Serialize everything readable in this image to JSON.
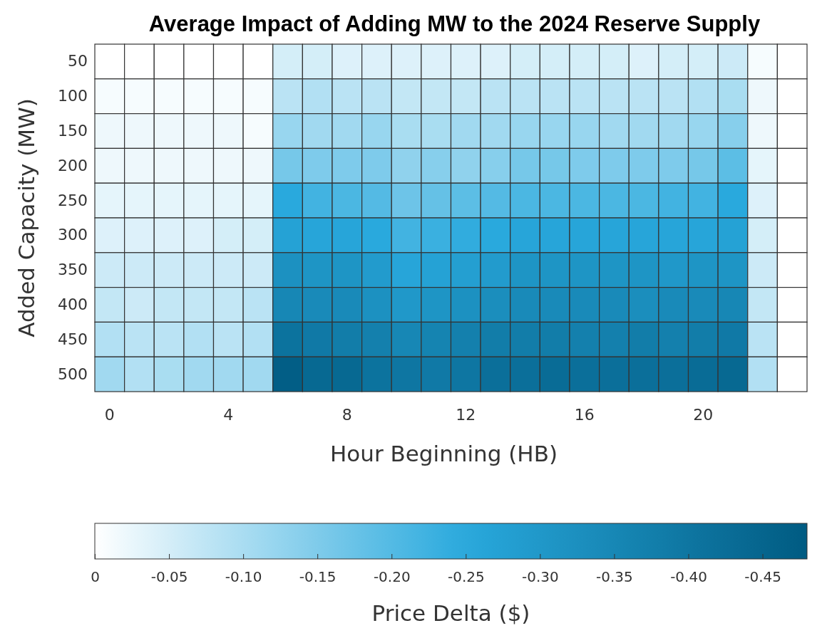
{
  "chart_data": {
    "type": "heatmap",
    "title": "Average Impact of Adding MW to the 2024 Reserve Supply",
    "xlabel": "Hour Beginning (HB)",
    "ylabel": "Added Capacity (MW)",
    "clabel": "Price Delta ($)",
    "categories": [
      "0",
      null,
      null,
      null,
      "4",
      null,
      null,
      null,
      "8",
      null,
      null,
      null,
      "12",
      null,
      null,
      null,
      "16",
      null,
      null,
      null,
      "20",
      null,
      null,
      null
    ],
    "y_categories": [
      "50",
      "100",
      "150",
      "200",
      "250",
      "300",
      "350",
      "400",
      "450",
      "500"
    ],
    "cells": [
      [
        0,
        0,
        0,
        0,
        0,
        0,
        -0.05,
        -0.05,
        -0.04,
        -0.04,
        -0.04,
        -0.04,
        -0.04,
        -0.04,
        -0.05,
        -0.05,
        -0.05,
        -0.05,
        -0.04,
        -0.05,
        -0.05,
        -0.06,
        -0.01,
        0
      ],
      [
        -0.01,
        -0.01,
        -0.01,
        -0.01,
        -0.01,
        -0.01,
        -0.08,
        -0.09,
        -0.08,
        -0.08,
        -0.07,
        -0.07,
        -0.07,
        -0.08,
        -0.08,
        -0.08,
        -0.08,
        -0.08,
        -0.08,
        -0.08,
        -0.09,
        -0.1,
        -0.02,
        0
      ],
      [
        -0.02,
        -0.02,
        -0.02,
        -0.02,
        -0.02,
        -0.01,
        -0.12,
        -0.11,
        -0.11,
        -0.12,
        -0.1,
        -0.1,
        -0.11,
        -0.11,
        -0.12,
        -0.12,
        -0.12,
        -0.11,
        -0.11,
        -0.11,
        -0.12,
        -0.14,
        -0.02,
        0
      ],
      [
        -0.02,
        -0.02,
        -0.02,
        -0.02,
        -0.02,
        -0.02,
        -0.16,
        -0.15,
        -0.15,
        -0.15,
        -0.13,
        -0.14,
        -0.13,
        -0.14,
        -0.16,
        -0.16,
        -0.15,
        -0.15,
        -0.15,
        -0.15,
        -0.16,
        -0.19,
        -0.03,
        0
      ],
      [
        -0.03,
        -0.03,
        -0.03,
        -0.03,
        -0.03,
        -0.03,
        -0.25,
        -0.22,
        -0.21,
        -0.2,
        -0.17,
        -0.18,
        -0.19,
        -0.2,
        -0.21,
        -0.21,
        -0.21,
        -0.21,
        -0.21,
        -0.22,
        -0.22,
        -0.25,
        -0.04,
        0
      ],
      [
        -0.04,
        -0.04,
        -0.04,
        -0.04,
        -0.05,
        -0.05,
        -0.27,
        -0.26,
        -0.26,
        -0.25,
        -0.22,
        -0.23,
        -0.24,
        -0.25,
        -0.26,
        -0.26,
        -0.26,
        -0.26,
        -0.26,
        -0.26,
        -0.26,
        -0.27,
        -0.05,
        0
      ],
      [
        -0.06,
        -0.06,
        -0.06,
        -0.06,
        -0.06,
        -0.06,
        -0.32,
        -0.31,
        -0.31,
        -0.29,
        -0.26,
        -0.27,
        -0.28,
        -0.29,
        -0.31,
        -0.31,
        -0.31,
        -0.31,
        -0.31,
        -0.3,
        -0.31,
        -0.31,
        -0.06,
        0
      ],
      [
        -0.07,
        -0.06,
        -0.07,
        -0.07,
        -0.07,
        -0.08,
        -0.35,
        -0.34,
        -0.34,
        -0.32,
        -0.3,
        -0.31,
        -0.32,
        -0.33,
        -0.34,
        -0.34,
        -0.34,
        -0.34,
        -0.33,
        -0.34,
        -0.34,
        -0.35,
        -0.07,
        0
      ],
      [
        -0.09,
        -0.08,
        -0.08,
        -0.09,
        -0.08,
        -0.09,
        -0.41,
        -0.39,
        -0.38,
        -0.37,
        -0.35,
        -0.36,
        -0.37,
        -0.38,
        -0.38,
        -0.38,
        -0.37,
        -0.37,
        -0.38,
        -0.37,
        -0.38,
        -0.39,
        -0.08,
        0
      ],
      [
        -0.11,
        -0.09,
        -0.1,
        -0.11,
        -0.11,
        -0.11,
        -0.47,
        -0.44,
        -0.44,
        -0.41,
        -0.4,
        -0.39,
        -0.4,
        -0.42,
        -0.42,
        -0.43,
        -0.42,
        -0.42,
        -0.42,
        -0.42,
        -0.43,
        -0.44,
        -0.09,
        0
      ]
    ],
    "clim": [
      0,
      -0.48
    ],
    "cticks": [
      0,
      -0.05,
      {
        "value": -0.1,
        "label": "-0.10"
      },
      -0.15,
      {
        "value": -0.2,
        "label": "-0.20"
      },
      -0.25,
      {
        "value": -0.3,
        "label": "-0.30"
      },
      -0.35,
      {
        "value": -0.4,
        "label": "-0.40"
      },
      -0.45
    ]
  }
}
